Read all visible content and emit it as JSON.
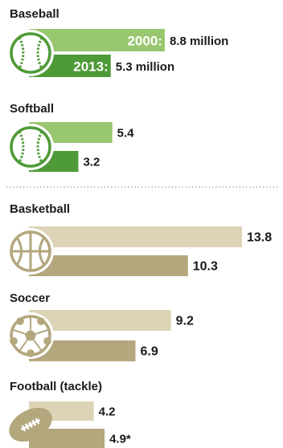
{
  "chart_data": {
    "type": "bar",
    "series": [
      {
        "name": "2000",
        "values": [
          8.8,
          5.4,
          13.8,
          9.2,
          4.2
        ]
      },
      {
        "name": "2013",
        "values": [
          5.3,
          3.2,
          10.3,
          6.9,
          4.9
        ]
      }
    ],
    "groups": [
      {
        "key": "baseball",
        "label": "Baseball",
        "icon": "baseball-icon",
        "v2000": 8.8,
        "v2013": 5.3,
        "label2000": "8.8 million",
        "label2013": "5.3 million",
        "year2000": "2000:",
        "year2013": "2013:",
        "color_light": "#99c76f",
        "color_dark": "#4f9a38"
      },
      {
        "key": "softball",
        "label": "Softball",
        "icon": "softball-icon",
        "v2000": 5.4,
        "v2013": 3.2,
        "label2000": "5.4",
        "label2013": "3.2",
        "color_light": "#99c76f",
        "color_dark": "#4f9a38"
      },
      {
        "key": "basketball",
        "label": "Basketball",
        "icon": "basketball-icon",
        "v2000": 13.8,
        "v2013": 10.3,
        "label2000": "13.8",
        "label2013": "10.3",
        "color_light": "#ddd3b6",
        "color_dark": "#b3a77d"
      },
      {
        "key": "soccer",
        "label": "Soccer",
        "icon": "soccer-ball-icon",
        "v2000": 9.2,
        "v2013": 6.9,
        "label2000": "9.2",
        "label2013": "6.9",
        "color_light": "#ddd3b6",
        "color_dark": "#b3a77d"
      },
      {
        "key": "football",
        "label": "Football (tackle)",
        "icon": "football-icon",
        "v2000": 4.2,
        "v2013": 4.9,
        "label2000": "4.2",
        "label2013": "4.9*",
        "color_light": "#ddd3b6",
        "color_dark": "#b3a77d"
      }
    ],
    "units": "million"
  }
}
